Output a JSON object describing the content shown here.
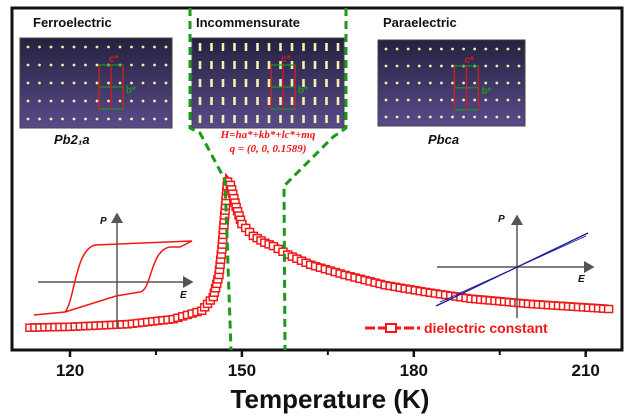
{
  "chart_data": {
    "type": "scatter",
    "title": "",
    "xlabel": "Temperature (K)",
    "ylabel": "",
    "xlim": [
      112,
      216
    ],
    "ylim": [
      0,
      110
    ],
    "y_units": "arbitrary",
    "xticks": [
      "120",
      "150",
      "180",
      "210"
    ],
    "xtick_values": [
      120,
      150,
      180,
      210
    ],
    "minor_xticks": [
      135,
      165,
      195
    ],
    "series": [
      {
        "name": "dielectric constant",
        "color": "#f01818",
        "marker": "open-square",
        "x": [
          113,
          120,
          130,
          138,
          143,
          145,
          146,
          146.5,
          147,
          147.5,
          148,
          149,
          150,
          152,
          154,
          155.5,
          158,
          162,
          168,
          175,
          182,
          190,
          200,
          214
        ],
        "y": [
          14,
          14.5,
          16,
          19,
          24,
          32,
          45,
          60,
          80,
          100,
          98,
          85,
          75,
          68,
          64,
          62,
          57,
          51,
          45,
          39,
          35,
          31,
          28,
          25
        ]
      }
    ],
    "phase_boundaries_K": [
      148,
      157
    ],
    "legend": {
      "label": "dielectric constant",
      "placement": "bottom-right"
    },
    "annotations": {
      "phases": [
        {
          "name": "Ferroelectric",
          "space_group": "Pb2₁a"
        },
        {
          "name": "Incommensurate",
          "formula_1": "H=ha*+kb*+lc*+mq",
          "formula_2": "q = (0, 0, 0.1589)"
        },
        {
          "name": "Paraelectric",
          "space_group": "Pbca"
        }
      ],
      "reciprocal_axes": {
        "c": "c*",
        "b": "b*"
      },
      "inset_axes": {
        "p": "P",
        "e": "E"
      }
    },
    "colors": {
      "curve": "#f01818",
      "boundary": "#1a9a1a",
      "linear_pe": "#1a1a9a",
      "panel_top": "#24223f",
      "panel_bottom": "#5a4a8a"
    }
  }
}
